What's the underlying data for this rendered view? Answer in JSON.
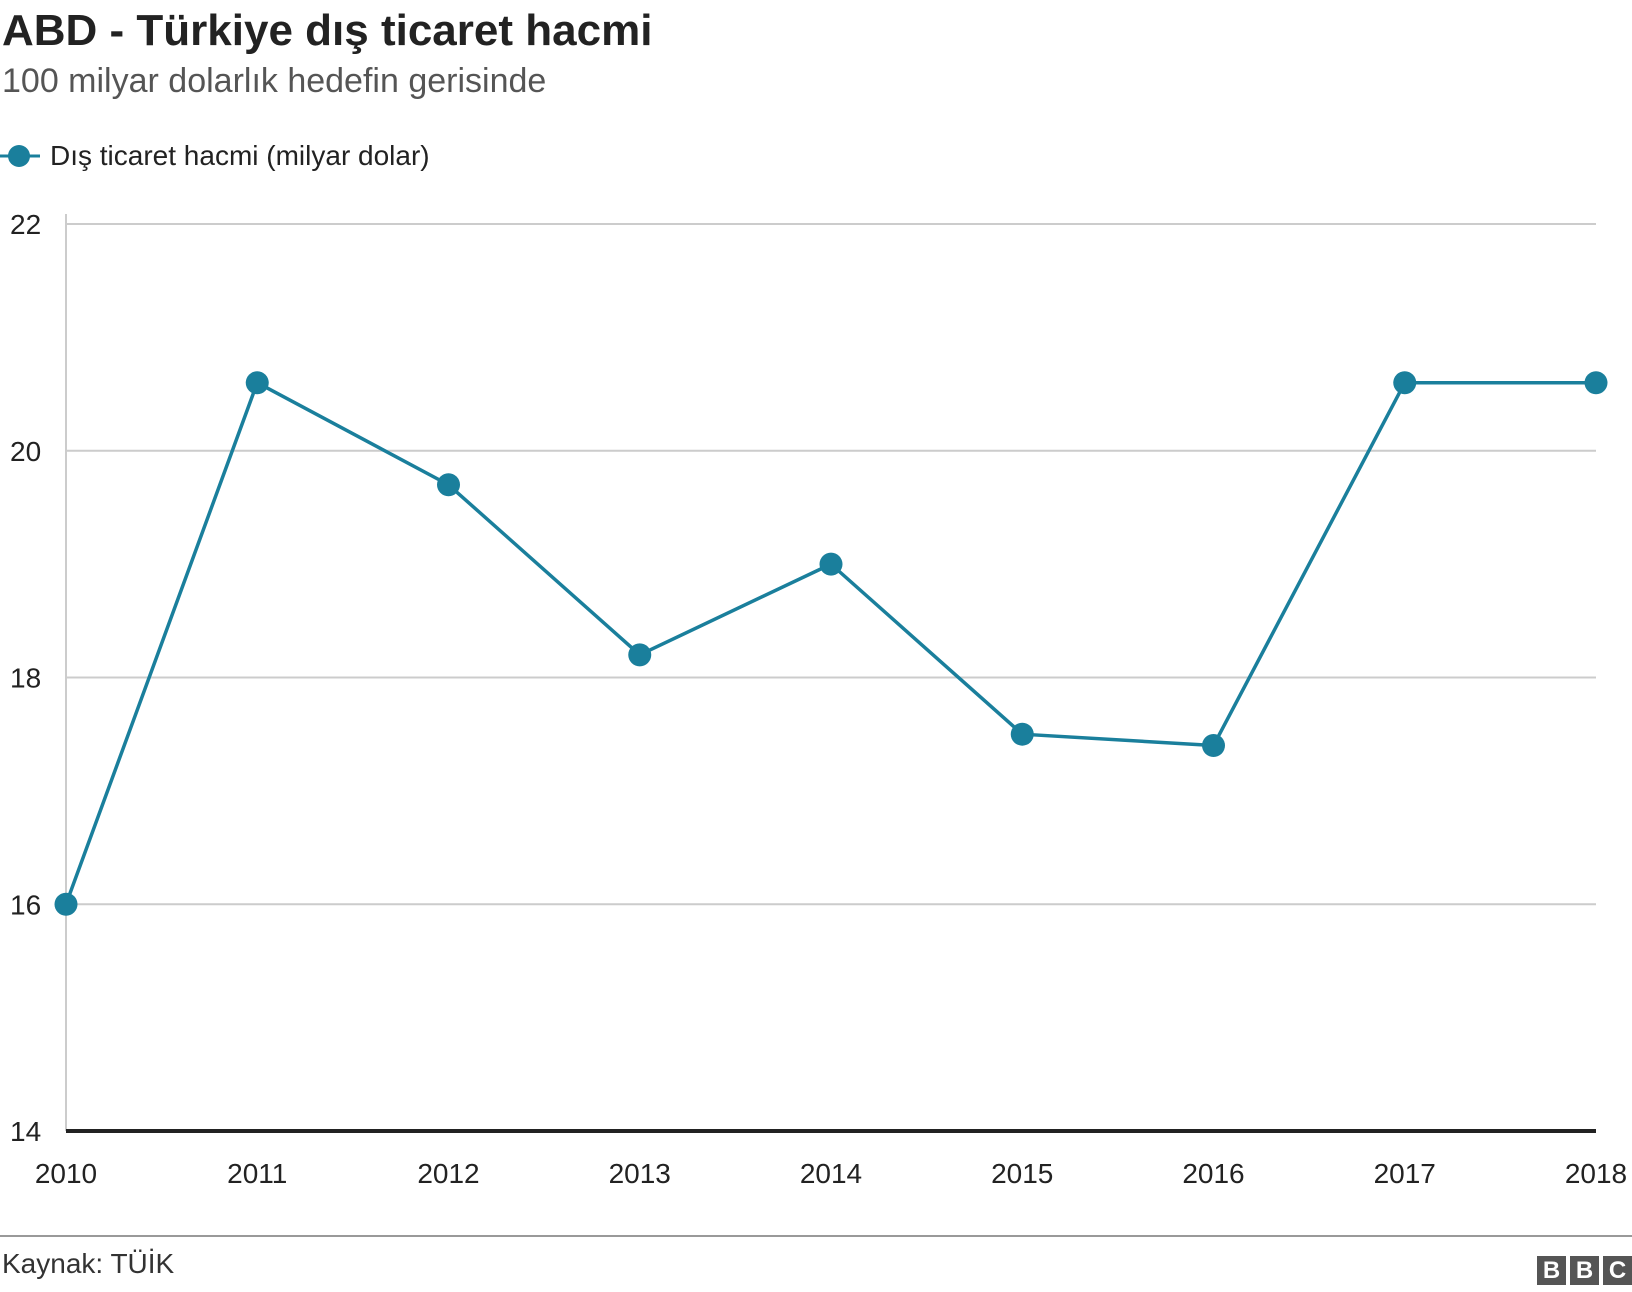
{
  "header": {
    "title": "ABD - Türkiye dış ticaret hacmi",
    "subtitle": "100 milyar dolarlık hedefin gerisinde"
  },
  "footer": {
    "source": "Kaynak: TÜİK",
    "logo_letters": [
      "B",
      "B",
      "C"
    ]
  },
  "colors": {
    "series": "#1a7f9c",
    "grid": "#cccccc",
    "axis": "#222222",
    "footer_rule": "#999999",
    "logo": "#555555"
  },
  "chart_data": {
    "type": "line",
    "title": "ABD - Türkiye dış ticaret hacmi",
    "subtitle": "100 milyar dolarlık hedefin gerisinde",
    "xlabel": "",
    "ylabel": "",
    "x": [
      "2010",
      "2011",
      "2012",
      "2013",
      "2014",
      "2015",
      "2016",
      "2017",
      "2018"
    ],
    "series": [
      {
        "name": "Dış ticaret hacmi (milyar dolar)",
        "values": [
          16.0,
          20.6,
          19.7,
          18.2,
          19.0,
          17.5,
          17.4,
          20.6,
          20.6
        ]
      }
    ],
    "ylim": [
      14,
      22
    ],
    "yticks": [
      "14",
      "16",
      "18",
      "20",
      "22"
    ],
    "grid": true,
    "legend_position": "top-left"
  }
}
